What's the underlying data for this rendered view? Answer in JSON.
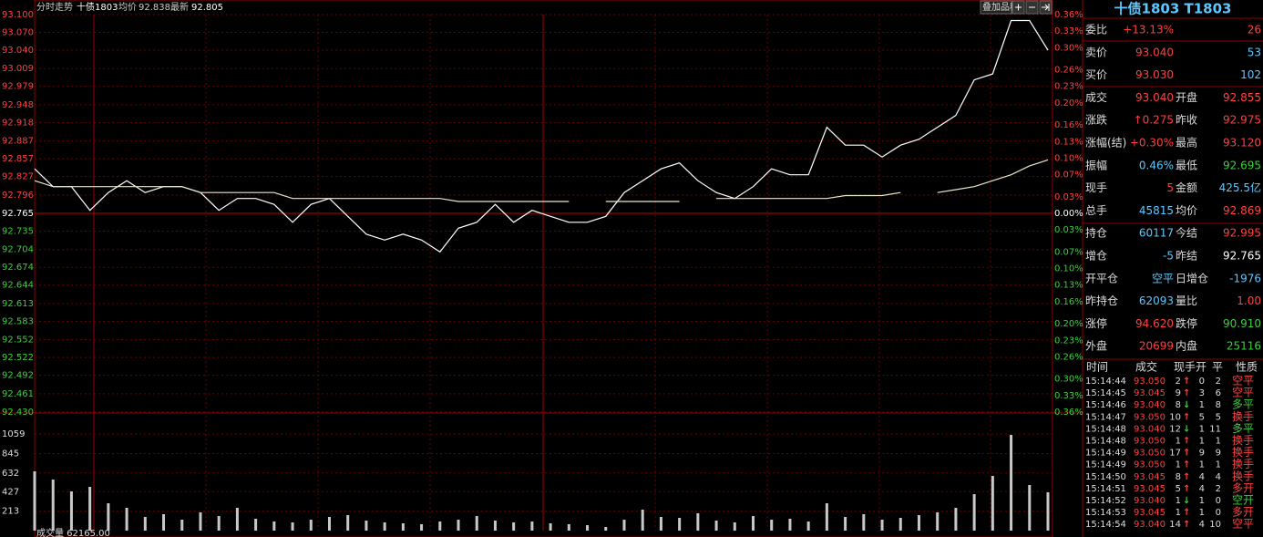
{
  "header": {
    "title": "分时走势",
    "name": "十债1803",
    "avg_label": "均价",
    "avg": "92.838",
    "last_label": "最新",
    "last": "92.805"
  },
  "toolbar": {
    "overlay": "叠加品种"
  },
  "chart_data": [
    {
      "type": "line",
      "series": [
        {
          "color": "#ffffff",
          "values": [
            92.84,
            92.81,
            92.81,
            92.77,
            92.8,
            92.82,
            92.8,
            92.81,
            92.81,
            92.8,
            92.77,
            92.79,
            92.79,
            92.78,
            92.75,
            92.78,
            92.79,
            92.76,
            92.73,
            92.72,
            92.73,
            92.72,
            92.7,
            92.74,
            92.75,
            92.78,
            92.75,
            92.77,
            92.76,
            92.75,
            92.75,
            92.76,
            92.8,
            92.82,
            92.84,
            92.85,
            92.82,
            92.8,
            92.79,
            92.81,
            92.84,
            92.83,
            92.83,
            92.91,
            92.88,
            92.88,
            92.86,
            92.88,
            92.89,
            92.91,
            92.93,
            92.99,
            93.0,
            93.09,
            93.09,
            93.04
          ]
        },
        {
          "color": "#e8e8c8",
          "values": [
            92.82,
            92.81,
            92.81,
            92.81,
            92.81,
            92.81,
            92.81,
            92.81,
            92.81,
            92.8,
            92.8,
            92.8,
            92.8,
            92.8,
            92.79,
            92.79,
            92.79,
            92.79,
            92.79,
            92.79,
            92.79,
            92.79,
            92.79,
            92.785,
            92.785,
            92.785,
            92.785,
            92.785,
            92.785,
            92.785,
            null,
            92.785,
            92.785,
            92.785,
            92.785,
            92.785,
            null,
            92.79,
            92.79,
            92.79,
            92.79,
            92.79,
            92.79,
            92.79,
            92.795,
            92.795,
            92.795,
            92.8,
            null,
            92.8,
            92.805,
            92.81,
            92.82,
            92.83,
            92.845,
            92.855
          ]
        }
      ],
      "ylim": [
        92.43,
        93.1
      ],
      "yticks": [
        {
          "value": 93.1,
          "label": "93.100"
        },
        {
          "value": 93.07,
          "label": "93.070"
        },
        {
          "value": 93.04,
          "label": "93.040"
        },
        93.009,
        92.979,
        92.948,
        92.918,
        92.887,
        92.857,
        92.827,
        92.796,
        92.765,
        92.735,
        92.704,
        92.674,
        92.644,
        92.613,
        92.583,
        92.552,
        92.522,
        92.492,
        92.461,
        {
          "value": 92.43,
          "label": "92.430"
        }
      ],
      "y2lim": [
        -0.36,
        0.36
      ],
      "y2ticks": [
        {
          "value": 0.36,
          "label": "0.36%"
        },
        {
          "value": 0.33,
          "label": "0.33%"
        },
        {
          "value": 0.3,
          "label": "0.30%"
        },
        {
          "value": 0.26,
          "label": "0.26%"
        },
        {
          "value": 0.23,
          "label": "0.23%"
        },
        {
          "value": 0.2,
          "label": "0.20%"
        },
        {
          "value": 0.16,
          "label": "0.16%"
        },
        {
          "value": 0.13,
          "label": "0.13%"
        },
        {
          "value": 0.1,
          "label": "0.10%"
        },
        {
          "value": 0.07,
          "label": "0.07%"
        },
        {
          "value": 0.03,
          "label": "0.03%"
        },
        {
          "value": 0,
          "label": "0.00%"
        },
        {
          "value": -0.03,
          "label": "0.03%"
        },
        {
          "value": -0.07,
          "label": "0.07%"
        },
        {
          "value": -0.1,
          "label": "0.10%"
        },
        {
          "value": -0.13,
          "label": "0.13%"
        },
        {
          "value": -0.16,
          "label": "0.16%"
        },
        {
          "value": -0.2,
          "label": "0.20%"
        },
        {
          "value": -0.23,
          "label": "0.23%"
        },
        {
          "value": -0.26,
          "label": "0.26%"
        },
        {
          "value": -0.3,
          "label": "0.30%"
        },
        {
          "value": -0.33,
          "label": "0.33%"
        },
        {
          "value": -0.36,
          "label": "0.36%"
        }
      ],
      "grid": true
    },
    {
      "type": "bar",
      "title": "成交量 62165.00",
      "color": "#c8c8c8",
      "values": [
        650,
        560,
        430,
        480,
        300,
        250,
        150,
        180,
        120,
        200,
        160,
        250,
        130,
        100,
        90,
        120,
        150,
        170,
        110,
        90,
        80,
        70,
        100,
        120,
        160,
        110,
        90,
        100,
        80,
        70,
        60,
        40,
        120,
        230,
        150,
        140,
        190,
        110,
        90,
        160,
        120,
        130,
        100,
        300,
        150,
        180,
        120,
        140,
        170,
        200,
        250,
        400,
        600,
        1050,
        500,
        420
      ],
      "ylim": [
        0,
        1270
      ],
      "yticks": [
        213,
        427,
        632,
        845,
        1059
      ],
      "grid": true
    }
  ],
  "panel": {
    "title": "十债1803 T1803",
    "rows": [
      {
        "cells": [
          "委比",
          "+13.13%",
          "26"
        ],
        "colors": [
          "#ddd",
          "#ff4040",
          "#ff4040"
        ]
      },
      {
        "cells": [
          "卖价",
          "93.040",
          "53"
        ],
        "colors": [
          "#ddd",
          "#ff4040",
          "#5cc8ff"
        ]
      },
      {
        "cells": [
          "买价",
          "93.030",
          "102"
        ],
        "colors": [
          "#ddd",
          "#ff4040",
          "#5cc8ff"
        ]
      },
      {
        "cells": [
          "成交",
          "93.040",
          "开盘",
          "92.855"
        ],
        "colors": [
          "#ddd",
          "#ff4040",
          "#ddd",
          "#ff4040"
        ]
      },
      {
        "cells": [
          "涨跌",
          "↑0.275",
          "昨收",
          "92.975"
        ],
        "colors": [
          "#ddd",
          "#ff4040",
          "#ddd",
          "#ff4040"
        ]
      },
      {
        "cells": [
          "涨幅(结)",
          "+0.30%",
          "最高",
          "93.120"
        ],
        "colors": [
          "#ddd",
          "#ff4040",
          "#ddd",
          "#ff4040"
        ]
      },
      {
        "cells": [
          "振幅",
          "0.46%",
          "最低",
          "92.695"
        ],
        "colors": [
          "#ddd",
          "#5cc8ff",
          "#ddd",
          "#3ccf3c"
        ]
      },
      {
        "cells": [
          "现手",
          "5",
          "金额",
          "425.5亿"
        ],
        "colors": [
          "#ddd",
          "#ff4040",
          "#ddd",
          "#5cc8ff"
        ]
      },
      {
        "cells": [
          "总手",
          "45815",
          "均价",
          "92.869"
        ],
        "colors": [
          "#ddd",
          "#5cc8ff",
          "#ddd",
          "#ff4040"
        ]
      },
      {
        "cells": [
          "持仓",
          "60117",
          "今结",
          "92.995"
        ],
        "colors": [
          "#ddd",
          "#5cc8ff",
          "#ddd",
          "#ff4040"
        ]
      },
      {
        "cells": [
          "增仓",
          "-5",
          "昨结",
          "92.765"
        ],
        "colors": [
          "#ddd",
          "#5cc8ff",
          "#ddd",
          "#ffffff"
        ]
      },
      {
        "cells": [
          "开平仓",
          "空平",
          "日增仓",
          "-1976"
        ],
        "colors": [
          "#ddd",
          "#5cc8ff",
          "#ddd",
          "#5cc8ff"
        ]
      },
      {
        "cells": [
          "昨持仓",
          "62093",
          "量比",
          "1.00"
        ],
        "colors": [
          "#ddd",
          "#5cc8ff",
          "#ddd",
          "#ff4040"
        ]
      },
      {
        "cells": [
          "涨停",
          "94.620",
          "跌停",
          "90.910"
        ],
        "colors": [
          "#ddd",
          "#ff4040",
          "#ddd",
          "#3ccf3c"
        ]
      },
      {
        "cells": [
          "外盘",
          "20699",
          "内盘",
          "25116"
        ],
        "colors": [
          "#ddd",
          "#ff4040",
          "#ddd",
          "#3ccf3c"
        ]
      }
    ]
  },
  "trades": {
    "columns": [
      "时间",
      "成交",
      "现手",
      "开",
      "平",
      "性质"
    ],
    "rows": [
      {
        "cells": [
          "15:14:44",
          "93.050",
          "2",
          "↑",
          "0",
          "2",
          "空平"
        ],
        "color": "#ff4040",
        "nature_color": "#ff4040"
      },
      {
        "cells": [
          "15:14:45",
          "93.045",
          "9",
          "↑",
          "3",
          "6",
          "空平"
        ],
        "color": "#ff4040",
        "nature_color": "#ff4040"
      },
      {
        "cells": [
          "15:14:46",
          "93.040",
          "8",
          "↓",
          "1",
          "8",
          "多平"
        ],
        "color": "#3ccf3c",
        "nature_color": "#3ccf3c"
      },
      {
        "cells": [
          "15:14:47",
          "93.050",
          "10",
          "↑",
          "5",
          "5",
          "换手"
        ],
        "color": "#ff4040",
        "nature_color": "#ff4040"
      },
      {
        "cells": [
          "15:14:48",
          "93.040",
          "12",
          "↓",
          "1",
          "11",
          "多平"
        ],
        "color": "#3ccf3c",
        "nature_color": "#3ccf3c"
      },
      {
        "cells": [
          "15:14:48",
          "93.050",
          "1",
          "↑",
          "1",
          "1",
          "换手"
        ],
        "color": "#ff4040",
        "nature_color": "#ff4040"
      },
      {
        "cells": [
          "15:14:49",
          "93.050",
          "17",
          "↑",
          "9",
          "9",
          "换手"
        ],
        "color": "#ff4040",
        "nature_color": "#ff4040"
      },
      {
        "cells": [
          "15:14:49",
          "93.050",
          "1",
          "↑",
          "1",
          "1",
          "换手"
        ],
        "color": "#ff4040",
        "nature_color": "#ff4040"
      },
      {
        "cells": [
          "15:14:50",
          "93.045",
          "8",
          "↑",
          "4",
          "4",
          "换手"
        ],
        "color": "#ff4040",
        "nature_color": "#ff4040"
      },
      {
        "cells": [
          "15:14:51",
          "93.045",
          "5",
          "↑",
          "4",
          "2",
          "多开"
        ],
        "color": "#ff4040",
        "nature_color": "#ff4040"
      },
      {
        "cells": [
          "15:14:52",
          "93.040",
          "1",
          "↓",
          "1",
          "0",
          "空开"
        ],
        "color": "#3ccf3c",
        "nature_color": "#3ccf3c"
      },
      {
        "cells": [
          "15:14:53",
          "93.045",
          "1",
          "↑",
          "1",
          "0",
          "多开"
        ],
        "color": "#ff4040",
        "nature_color": "#ff4040"
      },
      {
        "cells": [
          "15:14:54",
          "93.040",
          "14",
          "↑",
          "4",
          "10",
          "空平"
        ],
        "color": "#ff4040",
        "nature_color": "#ff4040"
      }
    ]
  }
}
